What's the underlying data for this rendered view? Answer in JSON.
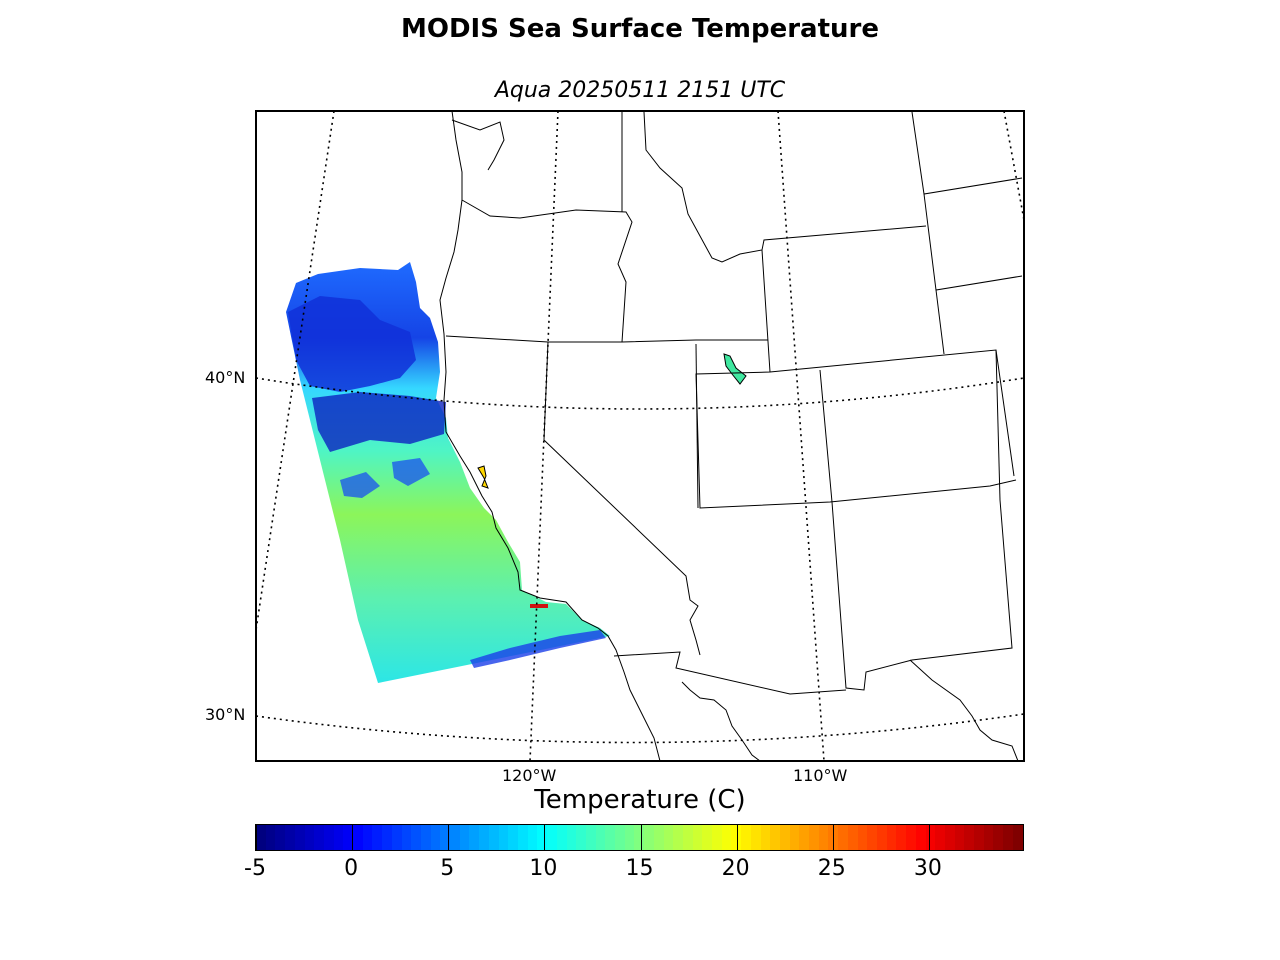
{
  "title": "MODIS Sea Surface Temperature",
  "subtitle": "Aqua 20250511 2151 UTC",
  "map": {
    "latitude_labels": [
      "40°N",
      "30°N"
    ],
    "longitude_labels": [
      "120°W",
      "110°W"
    ]
  },
  "colorbar": {
    "label": "Temperature (C)",
    "min": -5,
    "max": 34,
    "ticks": [
      "-5",
      "0",
      "5",
      "10",
      "15",
      "20",
      "25",
      "30"
    ],
    "colormap": "jet"
  }
}
